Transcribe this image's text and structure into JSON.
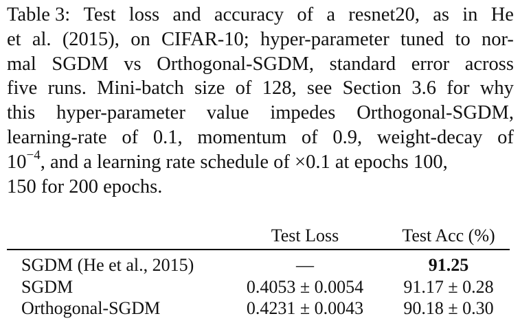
{
  "caption": {
    "lines": [
      [
        "Table 3:",
        "Test",
        "loss",
        "and",
        "accuracy",
        "of",
        "a",
        "resnet20,",
        "as",
        "in",
        "He"
      ],
      [
        "et",
        "al.",
        "(2015),",
        "on",
        "CIFAR-10;",
        "hyper-parameter",
        "tuned",
        "to",
        "nor-"
      ],
      [
        "mal",
        "SGDM",
        "vs",
        "Orthogonal-SGDM,",
        "standard",
        "error",
        "across"
      ],
      [
        "five",
        "runs.",
        "Mini-batch",
        "size",
        "of",
        "128,",
        "see",
        "Section",
        "3.6",
        "for",
        "why"
      ],
      [
        "this",
        "hyper-parameter",
        "value",
        "impedes",
        "Orthogonal-SGDM,"
      ],
      [
        "learning-rate",
        "of",
        "0.1,",
        "momentum",
        "of",
        "0.9,",
        "weight-decay",
        "of"
      ]
    ],
    "line7_base": "10",
    "line7_exp": "−4",
    "line7_rest": ", and a learning rate schedule of ×0.1 at epochs 100,",
    "line8": "150 for 200 epochs."
  },
  "table": {
    "headers": [
      "",
      "Test Loss",
      "Test Acc (%)"
    ],
    "rows": [
      {
        "method": "SGDM (He et al., 2015)",
        "loss": "—",
        "acc": "91.25",
        "acc_bold": true
      },
      {
        "method": "SGDM",
        "loss": "0.4053 ± 0.0054",
        "acc": "91.17 ± 0.28",
        "acc_bold": false
      },
      {
        "method": "Orthogonal-SGDM",
        "loss": "0.4231 ± 0.0043",
        "acc": "90.18 ± 0.30",
        "acc_bold": false
      }
    ]
  }
}
